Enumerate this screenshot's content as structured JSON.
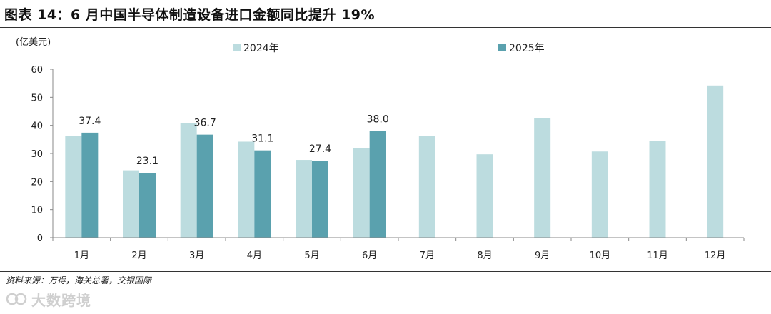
{
  "header": {
    "title": "图表 14：6 月中国半导体制造设备进口金额同比提升 19%"
  },
  "footer": {
    "source": "资料来源：万得，海关总署，交银国际",
    "watermark": "大数跨境"
  },
  "colors": {
    "series_2024": "#bcdcdf",
    "series_2025": "#5aa1ae",
    "axis": "#888888"
  },
  "chart_data": {
    "type": "bar",
    "title": "图表 14：6 月中国半导体制造设备进口金额同比提升 19%",
    "unit_label": "(亿美元)",
    "xlabel": "",
    "ylabel": "(亿美元)",
    "ylim": [
      0,
      60
    ],
    "yticks": [
      0,
      10,
      20,
      30,
      40,
      50,
      60
    ],
    "grid": false,
    "legend_position": "top-center",
    "categories": [
      "1月",
      "2月",
      "3月",
      "4月",
      "5月",
      "6月",
      "7月",
      "8月",
      "9月",
      "10月",
      "11月",
      "12月"
    ],
    "series": [
      {
        "name": "2024年",
        "values": [
          36.3,
          24.0,
          40.7,
          34.2,
          27.7,
          31.9,
          36.1,
          29.7,
          42.6,
          30.7,
          34.4,
          54.2
        ],
        "color": "#bcdcdf",
        "show_labels": false
      },
      {
        "name": "2025年",
        "values": [
          37.4,
          23.1,
          36.7,
          31.1,
          27.4,
          38.0,
          null,
          null,
          null,
          null,
          null,
          null
        ],
        "color": "#5aa1ae",
        "show_labels": true
      }
    ],
    "data_labels": [
      "37.4",
      "23.1",
      "36.7",
      "31.1",
      "27.4",
      "38.0"
    ]
  }
}
